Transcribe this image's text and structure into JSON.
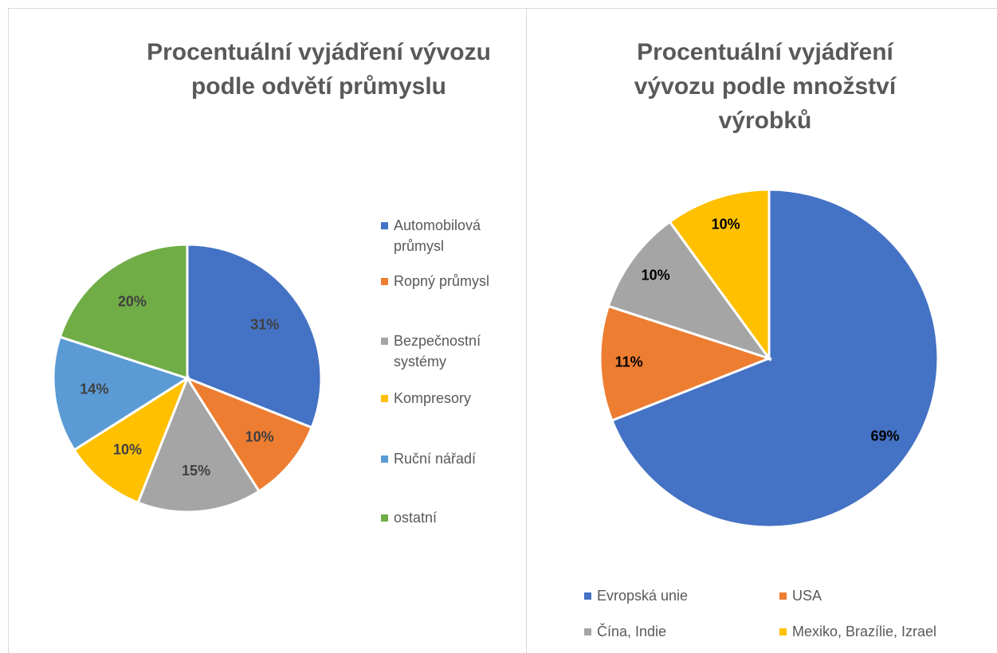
{
  "chart_data": [
    {
      "type": "pie",
      "title": "Procentuální vyjádření vývozu podle odvětí průmyslu",
      "categories": [
        "Automobilová průmysl",
        "Ropný průmysl",
        "Bezpečnostní systémy",
        "Kompresory",
        "Ruční nářadí",
        "ostatní"
      ],
      "values": [
        31,
        10,
        15,
        10,
        14,
        20
      ],
      "value_labels": [
        "31%",
        "10%",
        "15%",
        "10%",
        "14%",
        "20%"
      ],
      "colors": [
        "#4472c4",
        "#ed7d31",
        "#a5a5a5",
        "#ffc000",
        "#5b9bd5",
        "#70ad47"
      ],
      "legend": "right"
    },
    {
      "type": "pie",
      "title": "Procentuální vyjádření vývozu podle množství výrobků",
      "categories": [
        "Evropská unie",
        "USA",
        "Čína, Indie",
        "Mexiko, Brazílie, Izrael"
      ],
      "values": [
        69,
        11,
        10,
        10
      ],
      "value_labels": [
        "69%",
        "11%",
        "10%",
        "10%"
      ],
      "colors": [
        "#4472c4",
        "#ed7d31",
        "#a5a5a5",
        "#ffc000"
      ],
      "legend": "bottom"
    }
  ]
}
